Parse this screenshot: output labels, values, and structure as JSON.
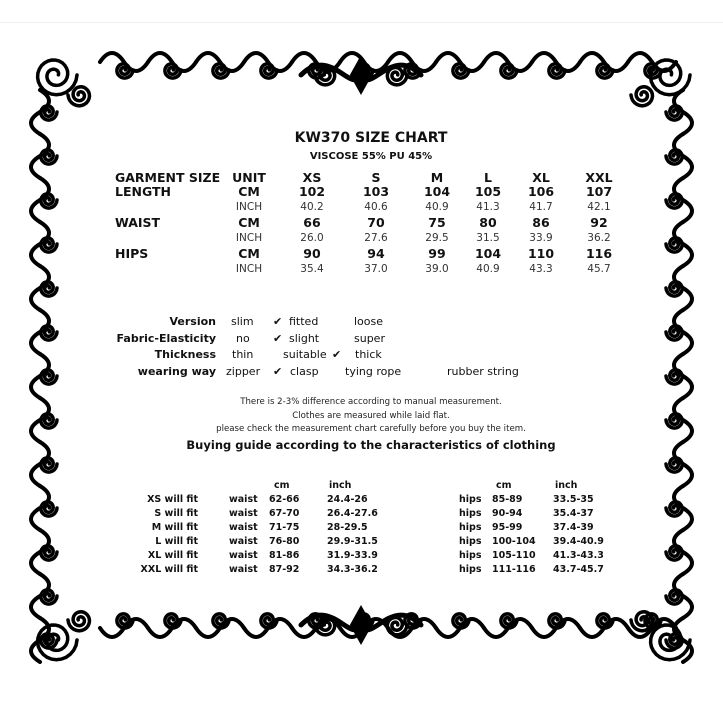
{
  "title": "KW370 SIZE CHART",
  "material": "VISCOSE 55% PU 45%",
  "size_table": {
    "headers": [
      "GARMENT SIZE",
      "UNIT",
      "XS",
      "S",
      "M",
      "L",
      "XL",
      "XXL"
    ],
    "rows": [
      {
        "label": "LENGTH",
        "cm_unit": "CM",
        "cm": [
          "102",
          "103",
          "104",
          "105",
          "106",
          "107"
        ],
        "inch_unit": "INCH",
        "inch": [
          "40.2",
          "40.6",
          "40.9",
          "41.3",
          "41.7",
          "42.1"
        ]
      },
      {
        "label": "WAIST",
        "cm_unit": "CM",
        "cm": [
          "66",
          "70",
          "75",
          "80",
          "86",
          "92"
        ],
        "inch_unit": "INCH",
        "inch": [
          "26.0",
          "27.6",
          "29.5",
          "31.5",
          "33.9",
          "36.2"
        ]
      },
      {
        "label": "HIPS",
        "cm_unit": "CM",
        "cm": [
          "90",
          "94",
          "99",
          "104",
          "110",
          "116"
        ],
        "inch_unit": "INCH",
        "inch": [
          "35.4",
          "37.0",
          "39.0",
          "40.9",
          "43.3",
          "45.7"
        ]
      }
    ]
  },
  "characteristics": [
    {
      "label": "Version",
      "options": [
        "slim",
        "fitted",
        "loose"
      ],
      "selected": "fitted"
    },
    {
      "label": "Fabric-Elasticity",
      "options": [
        "no",
        "slight",
        "super"
      ],
      "selected": "slight"
    },
    {
      "label": "Thickness",
      "options": [
        "thin",
        "suitable",
        "thick"
      ],
      "selected": "thick"
    },
    {
      "label": "wearing way",
      "options": [
        "zipper",
        "clasp",
        "tying rope",
        "rubber string"
      ],
      "selected": "clasp"
    }
  ],
  "check_icon": "checkmark-icon",
  "notes": [
    "There is 2-3% difference according to manual measurement.",
    "Clothes are measured while laid flat.",
    "please check the measurement chart carefully before you buy the item."
  ],
  "guide_title": "Buying guide according to the characteristics of clothing",
  "guide": {
    "cm_label": "cm",
    "inch_label": "inch",
    "rows": [
      {
        "fit": "XS will  fit",
        "waist": "waist",
        "waist_cm": "62-66",
        "waist_inch": "24.4-26",
        "hips": "hips",
        "hips_cm": "85-89",
        "hips_inch": "33.5-35"
      },
      {
        "fit": "S will  fit",
        "waist": "waist",
        "waist_cm": "67-70",
        "waist_inch": "26.4-27.6",
        "hips": "hips",
        "hips_cm": "90-94",
        "hips_inch": "35.4-37"
      },
      {
        "fit": "M will fit",
        "waist": "waist",
        "waist_cm": "71-75",
        "waist_inch": "28-29.5",
        "hips": "hips",
        "hips_cm": "95-99",
        "hips_inch": "37.4-39"
      },
      {
        "fit": "L will fit",
        "waist": "waist",
        "waist_cm": "76-80",
        "waist_inch": "29.9-31.5",
        "hips": "hips",
        "hips_cm": "100-104",
        "hips_inch": "39.4-40.9"
      },
      {
        "fit": "XL will fit",
        "waist": "waist",
        "waist_cm": "81-86",
        "waist_inch": "31.9-33.9",
        "hips": "hips",
        "hips_cm": "105-110",
        "hips_inch": "41.3-43.3"
      },
      {
        "fit": "XXL will fit",
        "waist": "waist",
        "waist_cm": "87-92",
        "waist_inch": "34.3-36.2",
        "hips": "hips",
        "hips_cm": "111-116",
        "hips_inch": "43.7-45.7"
      }
    ]
  },
  "colors": {
    "ink": "#111111",
    "background": "#ffffff"
  }
}
